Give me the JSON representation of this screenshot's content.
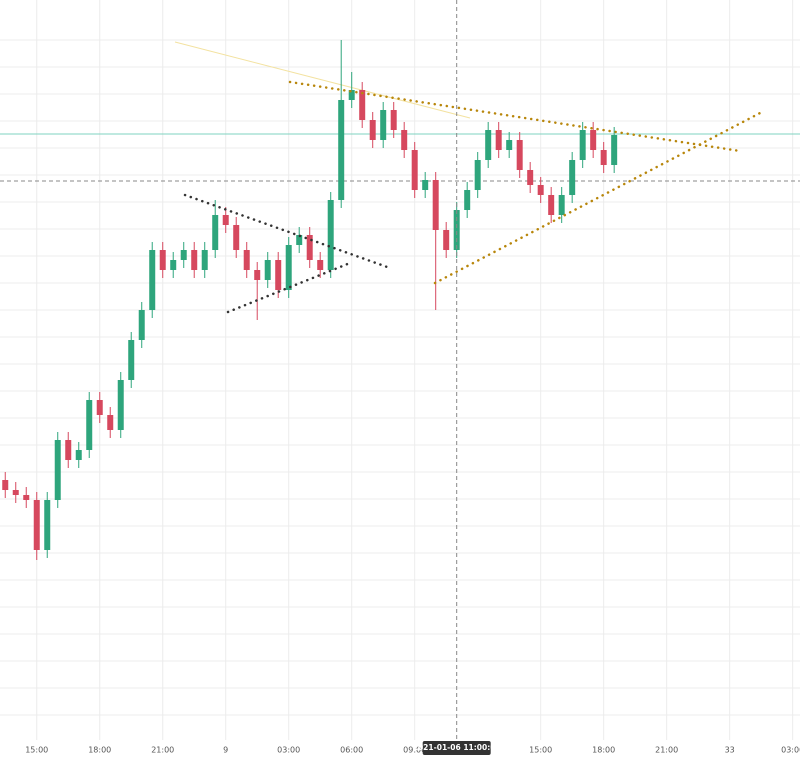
{
  "chart_data": {
    "type": "candlestick",
    "x": [
      -1.5,
      -1,
      -0.5,
      0,
      0.5,
      1,
      1.5,
      2,
      2.5,
      3,
      3.5,
      4,
      4.5,
      5,
      5.5,
      6,
      6.5,
      7,
      7.5,
      8,
      8.5,
      9,
      9.5,
      10,
      10.5,
      11,
      11.5,
      12,
      12.5,
      13,
      13.5,
      14,
      14.5,
      15,
      15.5,
      16,
      16.5,
      17,
      17.5,
      18,
      18.5,
      19,
      19.5,
      20,
      20.5,
      21,
      21.5,
      22,
      22.5,
      23,
      23.5,
      24,
      24.5,
      25,
      25.5,
      26,
      26.5,
      27,
      27.5
    ],
    "open": [
      260,
      250,
      245,
      240,
      190,
      240,
      300,
      280,
      290,
      340,
      325,
      310,
      360,
      400,
      430,
      490,
      470,
      480,
      490,
      470,
      490,
      525,
      515,
      490,
      470,
      460,
      480,
      450,
      495,
      505,
      480,
      470,
      540,
      640,
      650,
      620,
      600,
      630,
      610,
      590,
      550,
      560,
      510,
      490,
      530,
      550,
      580,
      610,
      590,
      600,
      570,
      555,
      545,
      525,
      545,
      580,
      610,
      590,
      575
    ],
    "high": [
      268,
      258,
      253,
      248,
      248,
      308,
      308,
      298,
      348,
      348,
      333,
      368,
      408,
      438,
      498,
      498,
      488,
      498,
      498,
      498,
      540,
      533,
      523,
      498,
      478,
      488,
      488,
      503,
      513,
      513,
      488,
      548,
      700,
      668,
      658,
      628,
      638,
      638,
      618,
      598,
      568,
      568,
      518,
      538,
      558,
      588,
      618,
      618,
      608,
      608,
      578,
      563,
      553,
      553,
      588,
      618,
      618,
      598,
      613
    ],
    "low": [
      242,
      237,
      232,
      180,
      182,
      232,
      272,
      272,
      282,
      317,
      302,
      302,
      352,
      392,
      422,
      462,
      462,
      472,
      462,
      462,
      482,
      507,
      482,
      462,
      420,
      452,
      442,
      442,
      487,
      472,
      462,
      462,
      532,
      632,
      612,
      592,
      592,
      602,
      582,
      542,
      542,
      430,
      482,
      482,
      522,
      542,
      572,
      582,
      582,
      562,
      547,
      537,
      517,
      517,
      537,
      572,
      582,
      567,
      567
    ],
    "close": [
      250,
      245,
      240,
      190,
      240,
      300,
      280,
      290,
      340,
      325,
      310,
      360,
      400,
      430,
      490,
      470,
      480,
      490,
      470,
      490,
      525,
      515,
      490,
      470,
      460,
      480,
      450,
      495,
      505,
      480,
      470,
      540,
      640,
      650,
      620,
      600,
      630,
      610,
      590,
      550,
      560,
      510,
      490,
      530,
      550,
      580,
      610,
      590,
      600,
      570,
      555,
      545,
      525,
      545,
      580,
      610,
      590,
      575,
      605
    ],
    "up_color": "#2ea57c",
    "down_color": "#d6485e",
    "xlim": [
      -1.75,
      36.35
    ],
    "ylim": [
      0,
      740
    ],
    "xticks": [
      {
        "value": 0,
        "label": "15:00"
      },
      {
        "value": 3,
        "label": "18:00"
      },
      {
        "value": 6,
        "label": "21:00"
      },
      9,
      {
        "value": 12,
        "label": "03:00"
      },
      {
        "value": 15,
        "label": "06:00"
      },
      {
        "value": 18,
        "label": "09:00"
      },
      {
        "value": 24,
        "label": "15:00"
      },
      {
        "value": 27,
        "label": "18:00"
      },
      {
        "value": 30,
        "label": "21:00"
      },
      33,
      {
        "value": 36,
        "label": "03:00"
      }
    ],
    "x_tick_labels_override": null,
    "crosshair": {
      "value": 20,
      "label": "2021-01-06 11:00:00"
    },
    "grid": true
  }
}
